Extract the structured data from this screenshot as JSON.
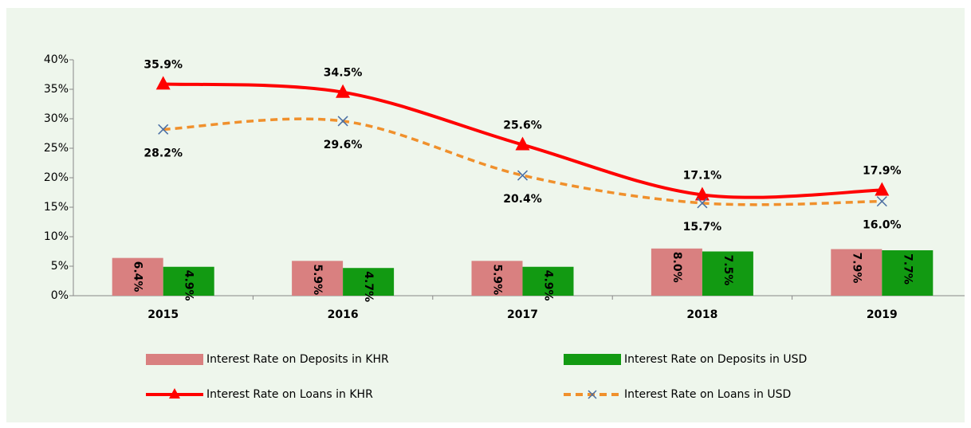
{
  "chart_data": {
    "type": "combo",
    "categories": [
      "2015",
      "2016",
      "2017",
      "2018",
      "2019"
    ],
    "series": [
      {
        "name": "Interest Rate on Deposits in KHR",
        "type": "bar",
        "color": "#d98080",
        "values": [
          6.4,
          5.9,
          5.9,
          8.0,
          7.9
        ],
        "value_labels": [
          "6.4%",
          "5.9%",
          "5.9%",
          "8.0%",
          "7.9%"
        ]
      },
      {
        "name": "Interest Rate on Deposits in USD",
        "type": "bar",
        "color": "#129a12",
        "values": [
          4.9,
          4.7,
          4.9,
          7.5,
          7.7
        ],
        "value_labels": [
          "4.9%",
          "4.7%",
          "4.9%",
          "7.5%",
          "7.7%"
        ]
      },
      {
        "name": "Interest Rate on Loans in KHR",
        "type": "line",
        "color": "#ff0000",
        "marker": "triangle",
        "values": [
          35.9,
          34.5,
          25.6,
          17.1,
          17.9
        ],
        "value_labels": [
          "35.9%",
          "34.5%",
          "25.6%",
          "17.1%",
          "17.9%"
        ]
      },
      {
        "name": "Interest Rate on Loans in USD",
        "type": "line",
        "color": "#f0902c",
        "marker_color": "#4a6fa5",
        "dashed": true,
        "marker": "x",
        "values": [
          28.2,
          29.6,
          20.4,
          15.7,
          16.0
        ],
        "value_labels": [
          "28.2%",
          "29.6%",
          "20.4%",
          "15.7%",
          "16.0%"
        ]
      }
    ],
    "ylim": [
      0,
      40
    ],
    "yticks": [
      {
        "value": 0,
        "label": "0%"
      },
      {
        "value": 5,
        "label": "5%"
      },
      {
        "value": 10,
        "label": "10%"
      },
      {
        "value": 15,
        "label": "15%"
      },
      {
        "value": 20,
        "label": "20%"
      },
      {
        "value": 25,
        "label": "25%"
      },
      {
        "value": 30,
        "label": "30%"
      },
      {
        "value": 35,
        "label": "35%"
      },
      {
        "value": 40,
        "label": "40%"
      }
    ],
    "grid": false
  }
}
